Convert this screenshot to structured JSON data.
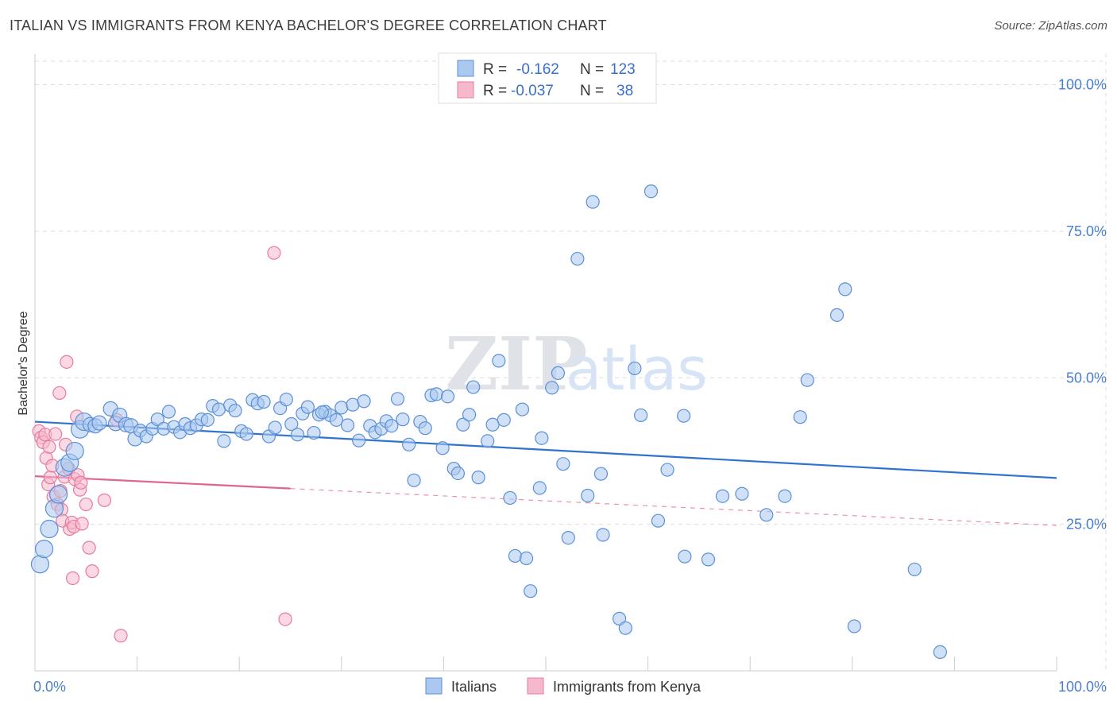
{
  "title": "ITALIAN VS IMMIGRANTS FROM KENYA BACHELOR'S DEGREE CORRELATION CHART",
  "source": "Source: ZipAtlas.com",
  "watermark": {
    "zip": "ZIP",
    "atlas": "atlas"
  },
  "colors": {
    "blue_fill": "#aac8f0",
    "blue_stroke": "#5b8fd6",
    "blue_line": "#2f72d1",
    "pink_fill": "#f6b9cc",
    "pink_stroke": "#e87aa0",
    "pink_line": "#e0648f",
    "grid": "#dddddd",
    "tick_text": "#4a7fcf"
  },
  "legend": {
    "rows": [
      {
        "r_label": "R =",
        "r_value": "-0.162",
        "n_label": "N =",
        "n_value": "123"
      },
      {
        "r_label": "R =",
        "r_value": "-0.037",
        "n_label": "N =",
        "n_value": "38"
      }
    ]
  },
  "chart_data": {
    "type": "scatter",
    "title": "ITALIAN VS IMMIGRANTS FROM KENYA BACHELOR'S DEGREE CORRELATION CHART",
    "xlabel": "",
    "ylabel": "Bachelor's Degree",
    "xlim": [
      0,
      100
    ],
    "ylim": [
      0,
      104
    ],
    "x_tick_labels": [
      "0.0%",
      "100.0%"
    ],
    "y_ticks": [
      25,
      50,
      75,
      100
    ],
    "y_tick_labels": [
      "25.0%",
      "50.0%",
      "75.0%",
      "100.0%"
    ],
    "grid": true,
    "series": [
      {
        "name": "Italians",
        "trend": {
          "x": [
            0,
            100
          ],
          "y": [
            42.5,
            32.9
          ]
        },
        "points": [
          [
            0.5,
            18.2
          ],
          [
            0.9,
            20.8
          ],
          [
            1.4,
            24.2
          ],
          [
            1.9,
            27.7
          ],
          [
            2.3,
            30.1
          ],
          [
            2.9,
            34.7
          ],
          [
            3.4,
            35.5
          ],
          [
            3.9,
            37.5
          ],
          [
            4.4,
            41.2
          ],
          [
            4.8,
            42.5
          ],
          [
            5.4,
            42.0
          ],
          [
            5.9,
            41.8
          ],
          [
            6.3,
            42.3
          ],
          [
            7.4,
            44.7
          ],
          [
            7.9,
            42.2
          ],
          [
            8.3,
            43.6
          ],
          [
            8.9,
            42.0
          ],
          [
            9.4,
            41.8
          ],
          [
            9.8,
            39.6
          ],
          [
            10.3,
            41.0
          ],
          [
            10.9,
            40.0
          ],
          [
            11.5,
            41.3
          ],
          [
            12.0,
            42.9
          ],
          [
            12.6,
            41.3
          ],
          [
            13.1,
            44.2
          ],
          [
            13.6,
            41.6
          ],
          [
            14.2,
            40.7
          ],
          [
            14.7,
            42.1
          ],
          [
            15.2,
            41.4
          ],
          [
            15.8,
            41.9
          ],
          [
            16.3,
            42.9
          ],
          [
            16.9,
            42.8
          ],
          [
            17.4,
            45.2
          ],
          [
            18.0,
            44.6
          ],
          [
            18.5,
            39.2
          ],
          [
            19.1,
            45.3
          ],
          [
            19.6,
            44.4
          ],
          [
            20.2,
            40.9
          ],
          [
            20.7,
            40.4
          ],
          [
            21.3,
            46.2
          ],
          [
            21.8,
            45.6
          ],
          [
            22.4,
            45.9
          ],
          [
            22.9,
            40.0
          ],
          [
            23.5,
            41.5
          ],
          [
            24.0,
            44.8
          ],
          [
            24.6,
            46.3
          ],
          [
            25.1,
            42.1
          ],
          [
            25.7,
            40.3
          ],
          [
            26.2,
            43.9
          ],
          [
            26.7,
            45.0
          ],
          [
            27.3,
            40.6
          ],
          [
            27.8,
            43.7
          ],
          [
            28.4,
            44.2
          ],
          [
            28.9,
            43.6
          ],
          [
            29.5,
            42.8
          ],
          [
            30.0,
            44.9
          ],
          [
            30.6,
            41.9
          ],
          [
            31.1,
            45.4
          ],
          [
            31.7,
            39.3
          ],
          [
            32.2,
            46.0
          ],
          [
            32.8,
            41.8
          ],
          [
            33.3,
            40.7
          ],
          [
            33.9,
            41.3
          ],
          [
            34.4,
            42.6
          ],
          [
            34.9,
            41.8
          ],
          [
            35.5,
            46.4
          ],
          [
            36.0,
            42.9
          ],
          [
            36.6,
            38.6
          ],
          [
            37.1,
            32.5
          ],
          [
            37.7,
            42.5
          ],
          [
            38.2,
            41.4
          ],
          [
            38.8,
            47.0
          ],
          [
            39.3,
            47.2
          ],
          [
            39.9,
            38.0
          ],
          [
            40.4,
            46.8
          ],
          [
            41.0,
            34.5
          ],
          [
            41.4,
            33.7
          ],
          [
            41.9,
            42.0
          ],
          [
            42.5,
            43.7
          ],
          [
            42.9,
            48.4
          ],
          [
            43.4,
            33.0
          ],
          [
            44.3,
            39.2
          ],
          [
            44.8,
            42.0
          ],
          [
            45.4,
            52.9
          ],
          [
            45.9,
            42.8
          ],
          [
            46.5,
            29.5
          ],
          [
            47.0,
            19.6
          ],
          [
            48.1,
            19.2
          ],
          [
            48.5,
            13.6
          ],
          [
            49.6,
            39.7
          ],
          [
            50.6,
            48.3
          ],
          [
            51.2,
            50.8
          ],
          [
            51.7,
            35.3
          ],
          [
            52.2,
            22.7
          ],
          [
            53.1,
            70.3
          ],
          [
            54.1,
            29.9
          ],
          [
            54.6,
            80.0
          ],
          [
            55.6,
            23.2
          ],
          [
            55.4,
            33.6
          ],
          [
            57.2,
            8.9
          ],
          [
            57.8,
            7.3
          ],
          [
            58.7,
            51.6
          ],
          [
            59.3,
            43.6
          ],
          [
            60.3,
            81.8
          ],
          [
            61.0,
            25.6
          ],
          [
            61.9,
            34.3
          ],
          [
            63.6,
            19.5
          ],
          [
            65.9,
            19.0
          ],
          [
            67.3,
            29.8
          ],
          [
            69.2,
            30.2
          ],
          [
            71.6,
            26.6
          ],
          [
            74.9,
            43.3
          ],
          [
            75.6,
            49.6
          ],
          [
            78.5,
            60.7
          ],
          [
            79.3,
            65.1
          ],
          [
            80.2,
            7.6
          ],
          [
            86.1,
            17.3
          ],
          [
            88.6,
            3.2
          ],
          [
            73.4,
            29.8
          ],
          [
            63.5,
            43.5
          ],
          [
            47.7,
            44.6
          ],
          [
            49.4,
            31.2
          ],
          [
            28.1,
            44.1
          ]
        ]
      },
      {
        "name": "Immigrants from Kenya",
        "trend": {
          "x": [
            0,
            100
          ],
          "y": [
            33.2,
            24.8
          ]
        },
        "trend_solid_until_x": 25,
        "points": [
          [
            0.4,
            40.9
          ],
          [
            0.6,
            39.8
          ],
          [
            0.8,
            39.0
          ],
          [
            1.0,
            40.3
          ],
          [
            1.1,
            36.3
          ],
          [
            1.3,
            31.8
          ],
          [
            1.4,
            38.2
          ],
          [
            1.5,
            33.0
          ],
          [
            1.7,
            35.0
          ],
          [
            1.8,
            29.7
          ],
          [
            2.0,
            40.4
          ],
          [
            2.2,
            28.4
          ],
          [
            2.4,
            47.4
          ],
          [
            2.5,
            30.7
          ],
          [
            2.6,
            27.5
          ],
          [
            2.7,
            25.6
          ],
          [
            2.9,
            33.1
          ],
          [
            3.0,
            38.6
          ],
          [
            3.1,
            52.7
          ],
          [
            3.3,
            34.5
          ],
          [
            3.4,
            24.2
          ],
          [
            3.6,
            25.3
          ],
          [
            3.7,
            15.8
          ],
          [
            3.8,
            24.6
          ],
          [
            3.9,
            32.7
          ],
          [
            4.1,
            43.4
          ],
          [
            4.2,
            33.4
          ],
          [
            4.4,
            30.9
          ],
          [
            4.5,
            32.1
          ],
          [
            4.6,
            25.1
          ],
          [
            5.0,
            28.4
          ],
          [
            5.3,
            21.0
          ],
          [
            5.6,
            17.0
          ],
          [
            6.8,
            29.1
          ],
          [
            8.4,
            6.0
          ],
          [
            23.4,
            71.3
          ],
          [
            24.5,
            8.8
          ],
          [
            8.0,
            42.8
          ]
        ]
      }
    ]
  },
  "bottom_legend": {
    "items": [
      {
        "label": "Italians"
      },
      {
        "label": "Immigrants from Kenya"
      }
    ]
  }
}
